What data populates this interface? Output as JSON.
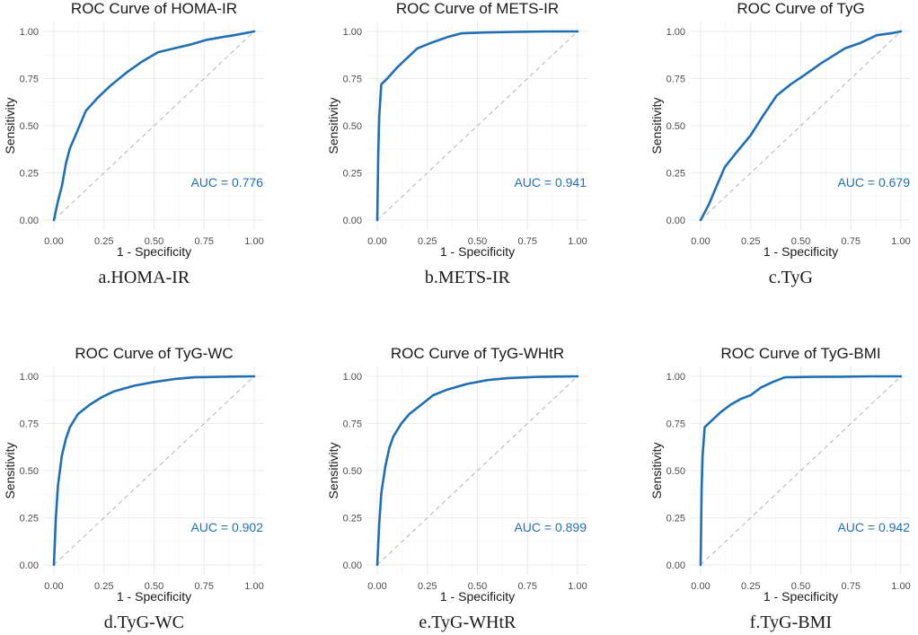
{
  "colors": {
    "curve": "#1f6fb4",
    "diagonal": "#b3b3b3",
    "auc_text": "#1f6fb4"
  },
  "chart_data": [
    {
      "type": "line",
      "title": "ROC Curve of HOMA-IR",
      "xlabel": "1 - Specificity",
      "ylabel": "Sensitivity",
      "xlim": [
        0,
        1
      ],
      "ylim": [
        0,
        1
      ],
      "xticks": [
        "0.00",
        "0.25",
        "0.50",
        "0.75",
        "1.00"
      ],
      "yticks": [
        "0.00",
        "0.25",
        "0.50",
        "0.75",
        "1.00"
      ],
      "auc_label": "AUC = 0.776",
      "caption": "a.HOMA-IR",
      "x": [
        0,
        0.02,
        0.04,
        0.06,
        0.08,
        0.12,
        0.16,
        0.22,
        0.28,
        0.36,
        0.44,
        0.52,
        0.6,
        0.68,
        0.76,
        0.84,
        0.9,
        0.95,
        1.0
      ],
      "y": [
        0,
        0.1,
        0.18,
        0.3,
        0.38,
        0.48,
        0.58,
        0.65,
        0.71,
        0.78,
        0.84,
        0.89,
        0.91,
        0.93,
        0.955,
        0.97,
        0.98,
        0.99,
        1.0
      ]
    },
    {
      "type": "line",
      "title": "ROC Curve of METS-IR",
      "xlabel": "1 - Specificity",
      "ylabel": "Sensitivity",
      "xlim": [
        0,
        1
      ],
      "ylim": [
        0,
        1
      ],
      "xticks": [
        "0.00",
        "0.25",
        "0.50",
        "0.75",
        "1.00"
      ],
      "yticks": [
        "0.00",
        "0.25",
        "0.50",
        "0.75",
        "1.00"
      ],
      "auc_label": "AUC = 0.941",
      "caption": "b.METS-IR",
      "x": [
        0,
        0.005,
        0.01,
        0.02,
        0.05,
        0.1,
        0.15,
        0.2,
        0.27,
        0.35,
        0.42,
        0.55,
        0.7,
        0.85,
        1.0
      ],
      "y": [
        0,
        0.35,
        0.55,
        0.72,
        0.75,
        0.81,
        0.86,
        0.91,
        0.94,
        0.97,
        0.99,
        0.995,
        0.998,
        1.0,
        1.0
      ]
    },
    {
      "type": "line",
      "title": "ROC Curve of TyG",
      "xlabel": "1 - Specificity",
      "ylabel": "Sensitivity",
      "xlim": [
        0,
        1
      ],
      "ylim": [
        0,
        1
      ],
      "xticks": [
        "0.00",
        "0.25",
        "0.50",
        "0.75",
        "1.00"
      ],
      "yticks": [
        "0.00",
        "0.25",
        "0.50",
        "0.75",
        "1.00"
      ],
      "auc_label": "AUC = 0.679",
      "caption": "c.TyG",
      "x": [
        0,
        0.04,
        0.08,
        0.12,
        0.18,
        0.25,
        0.31,
        0.38,
        0.45,
        0.52,
        0.6,
        0.66,
        0.72,
        0.8,
        0.88,
        0.95,
        1.0
      ],
      "y": [
        0,
        0.08,
        0.18,
        0.28,
        0.36,
        0.45,
        0.55,
        0.66,
        0.72,
        0.77,
        0.83,
        0.87,
        0.91,
        0.94,
        0.98,
        0.99,
        1.0
      ]
    },
    {
      "type": "line",
      "title": "ROC Curve of TyG-WC",
      "xlabel": "1 - Specificity",
      "ylabel": "Sensitivity",
      "xlim": [
        0,
        1
      ],
      "ylim": [
        0,
        1
      ],
      "xticks": [
        "0.00",
        "0.25",
        "0.50",
        "0.75",
        "1.00"
      ],
      "yticks": [
        "0.00",
        "0.25",
        "0.50",
        "0.75",
        "1.00"
      ],
      "auc_label": "AUC = 0.902",
      "caption": "d.TyG-WC",
      "x": [
        0,
        0.01,
        0.02,
        0.04,
        0.06,
        0.08,
        0.12,
        0.18,
        0.24,
        0.3,
        0.4,
        0.5,
        0.6,
        0.7,
        0.85,
        1.0
      ],
      "y": [
        0,
        0.25,
        0.42,
        0.58,
        0.67,
        0.73,
        0.8,
        0.85,
        0.89,
        0.92,
        0.95,
        0.97,
        0.985,
        0.995,
        0.998,
        1.0
      ]
    },
    {
      "type": "line",
      "title": "ROC Curve of TyG-WHtR",
      "xlabel": "1 - Specificity",
      "ylabel": "Sensitivity",
      "xlim": [
        0,
        1
      ],
      "ylim": [
        0,
        1
      ],
      "xticks": [
        "0.00",
        "0.25",
        "0.50",
        "0.75",
        "1.00"
      ],
      "yticks": [
        "0.00",
        "0.25",
        "0.50",
        "0.75",
        "1.00"
      ],
      "auc_label": "AUC = 0.899",
      "caption": "e.TyG-WHtR",
      "x": [
        0,
        0.01,
        0.02,
        0.04,
        0.06,
        0.08,
        0.12,
        0.16,
        0.22,
        0.28,
        0.35,
        0.45,
        0.55,
        0.65,
        0.8,
        1.0
      ],
      "y": [
        0,
        0.22,
        0.38,
        0.52,
        0.62,
        0.68,
        0.75,
        0.8,
        0.85,
        0.9,
        0.93,
        0.96,
        0.98,
        0.99,
        0.997,
        1.0
      ]
    },
    {
      "type": "line",
      "title": "ROC Curve of TyG-BMI",
      "xlabel": "1 - Specificity",
      "ylabel": "Sensitivity",
      "xlim": [
        0,
        1
      ],
      "ylim": [
        0,
        1
      ],
      "xticks": [
        "0.00",
        "0.25",
        "0.50",
        "0.75",
        "1.00"
      ],
      "yticks": [
        "0.00",
        "0.25",
        "0.50",
        "0.75",
        "1.00"
      ],
      "auc_label": "AUC = 0.942",
      "caption": "f.TyG-BMI",
      "x": [
        0,
        0.005,
        0.01,
        0.02,
        0.05,
        0.1,
        0.15,
        0.2,
        0.25,
        0.3,
        0.36,
        0.42,
        0.55,
        0.7,
        0.85,
        1.0
      ],
      "y": [
        0,
        0.4,
        0.58,
        0.73,
        0.76,
        0.81,
        0.85,
        0.88,
        0.9,
        0.94,
        0.97,
        0.995,
        0.997,
        0.998,
        1.0,
        1.0
      ]
    }
  ]
}
